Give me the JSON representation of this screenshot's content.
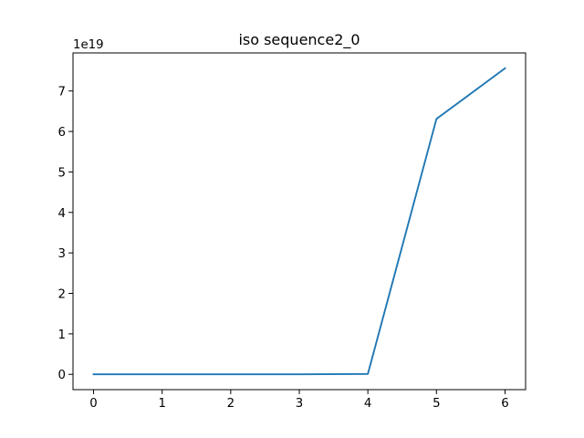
{
  "chart_data": {
    "type": "line",
    "title": "iso sequence2_0",
    "xlabel": "",
    "ylabel": "",
    "y_offset_label": "1e19",
    "x": [
      0,
      1,
      2,
      3,
      4,
      5,
      6
    ],
    "series": [
      {
        "values": [
          0,
          0,
          0,
          0,
          1e+17,
          6.31e+19,
          7.56e+19
        ],
        "color": "#1f77b4"
      }
    ],
    "xlim": [
      -0.3,
      6.3
    ],
    "ylim": [
      -3.78e+18,
      7.94e+19
    ],
    "x_ticks": [
      0,
      1,
      2,
      3,
      4,
      5,
      6
    ],
    "x_tick_labels": [
      "0",
      "1",
      "2",
      "3",
      "4",
      "5",
      "6"
    ],
    "y_ticks": [
      0,
      1e+19,
      2e+19,
      3e+19,
      4e+19,
      5e+19,
      6e+19,
      7e+19
    ],
    "y_tick_labels": [
      "0",
      "1",
      "2",
      "3",
      "4",
      "5",
      "6",
      "7"
    ],
    "grid": false,
    "legend": "none"
  }
}
